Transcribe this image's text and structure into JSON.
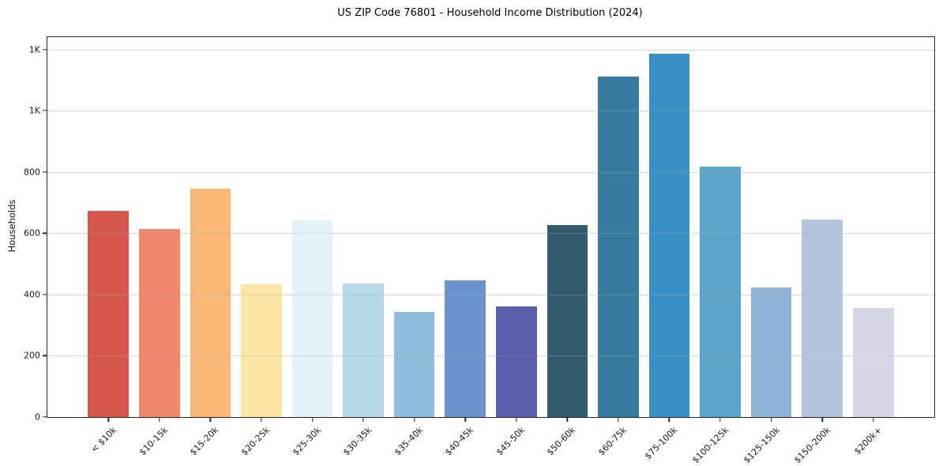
{
  "chart": {
    "title": "US ZIP Code 76801 - Household Income Distribution (2024)",
    "ylabel": "Households"
  },
  "chart_data": {
    "type": "bar",
    "title": "US ZIP Code 76801 - Household Income Distribution (2024)",
    "xlabel": "",
    "ylabel": "Households",
    "categories": [
      "< $10k",
      "$10-15k",
      "$15-20k",
      "$20-25k",
      "$25-30k",
      "$30-35k",
      "$35-40k",
      "$40-45k",
      "$45-50k",
      "$50-60k",
      "$60-75k",
      "$75-100k",
      "$100-125k",
      "$125-150k",
      "$150-200k",
      "$200k+"
    ],
    "values": [
      672,
      613,
      744,
      432,
      641,
      435,
      342,
      447,
      362,
      626,
      1112,
      1187,
      818,
      423,
      644,
      355
    ],
    "bar_colors": [
      "#d5574e",
      "#f0886c",
      "#f9b877",
      "#fce5a5",
      "#e4f1f6",
      "#b7d9e9",
      "#8fbedd",
      "#6b92cb",
      "#5b5dad",
      "#355c6e",
      "#347b9e",
      "#3a90c5",
      "#5ba4cc",
      "#90b4d7",
      "#b5c4de",
      "#d7d8e6"
    ],
    "ylim": [
      0,
      1240
    ],
    "yticks": [
      {
        "value": 0,
        "label": "0"
      },
      {
        "value": 200,
        "label": "200"
      },
      {
        "value": 400,
        "label": "400"
      },
      {
        "value": 600,
        "label": "600"
      },
      {
        "value": 800,
        "label": "800"
      },
      {
        "value": 1000,
        "label": "1K"
      },
      {
        "value": 1200,
        "label": "1K"
      }
    ],
    "grid": "horizontal",
    "legend": "none",
    "background": "#ffffff",
    "bar_width_fraction": 0.8,
    "xtick_rotation_deg": 45
  }
}
